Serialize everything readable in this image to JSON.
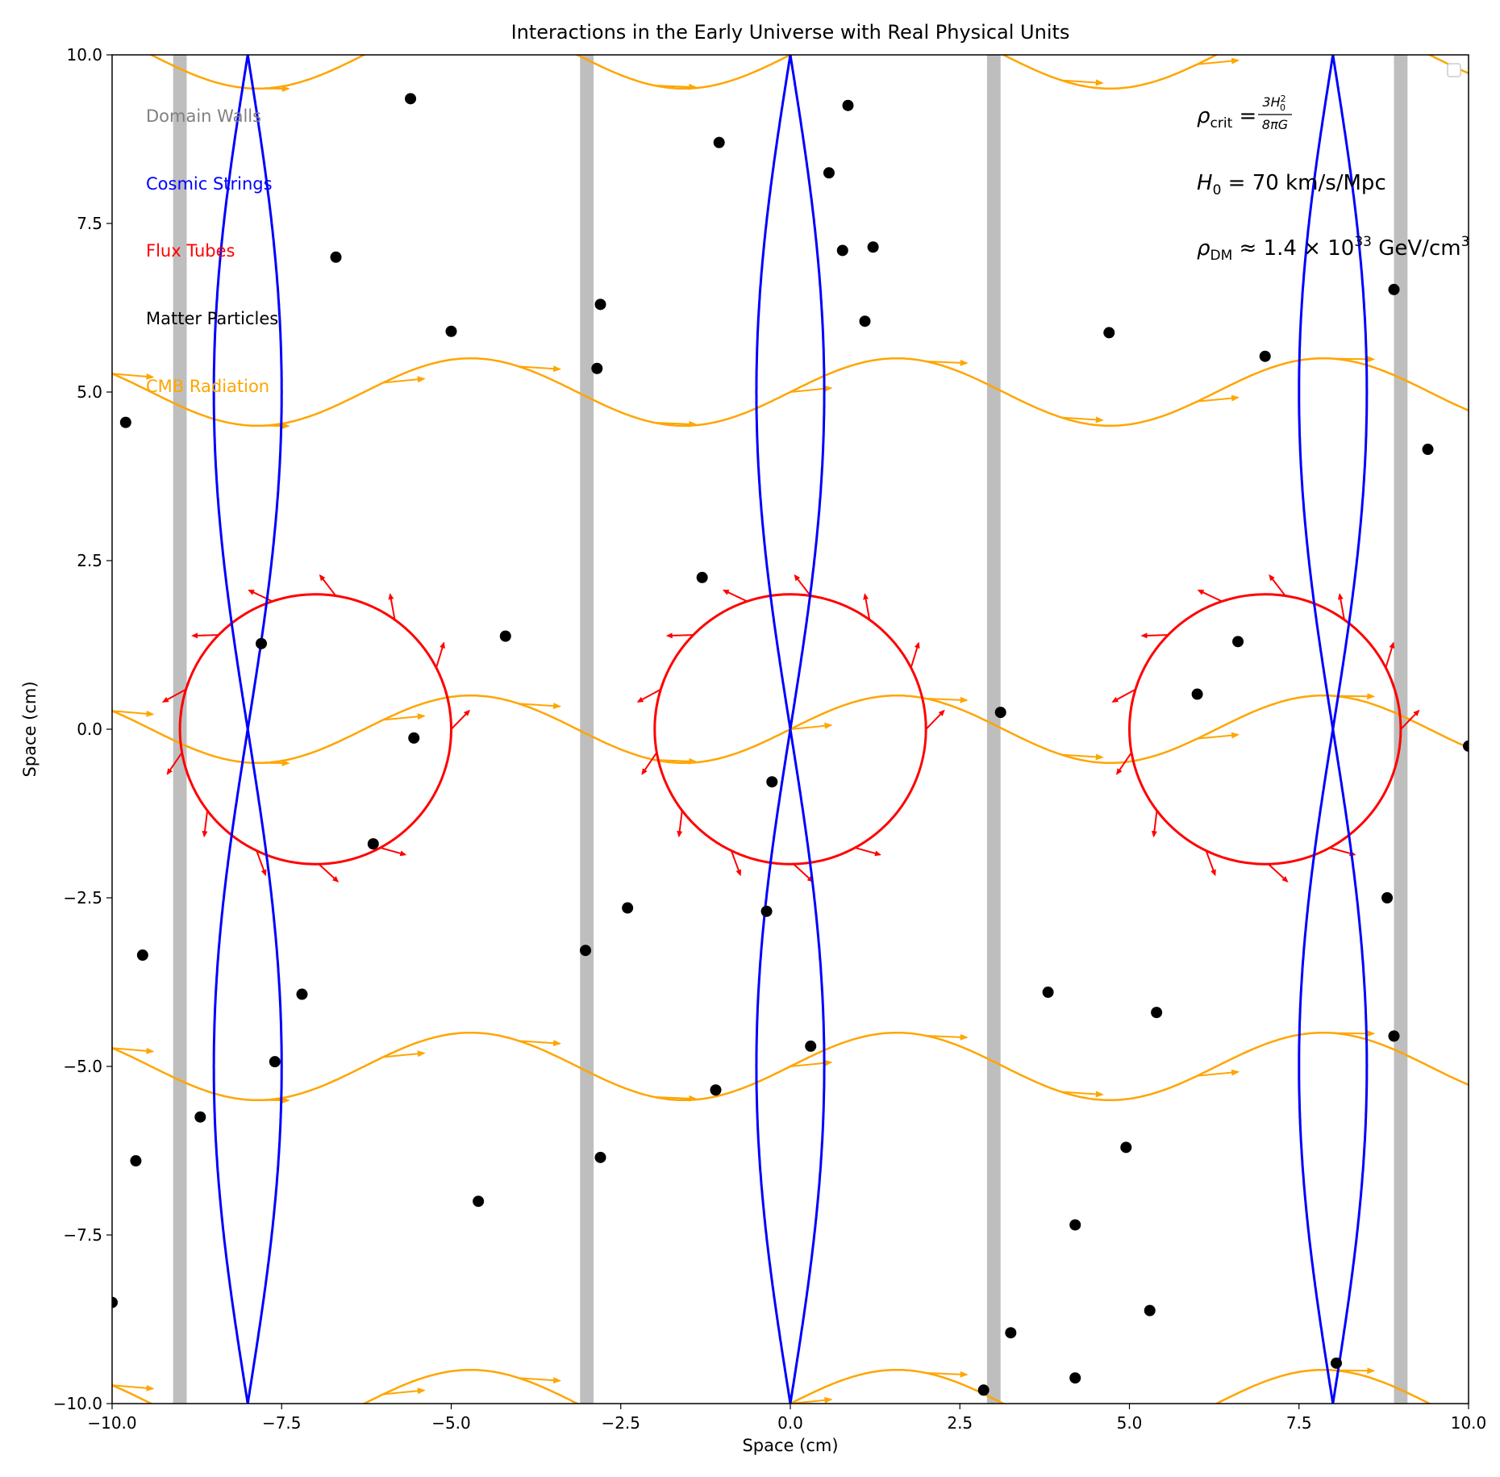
{
  "chart_data": {
    "type": "scatter",
    "title": "Interactions in the Early Universe with Real Physical Units",
    "xlabel": "Space (cm)",
    "ylabel": "Space (cm)",
    "xlim": [
      -10,
      10
    ],
    "ylim": [
      -10,
      10
    ],
    "xticks": [
      -10,
      -7.5,
      -5,
      -2.5,
      0,
      2.5,
      5,
      7.5,
      10
    ],
    "yticks": [
      -10,
      -7.5,
      -5,
      -2.5,
      0,
      2.5,
      5,
      7.5,
      10
    ],
    "xtick_labels": [
      "−10.0",
      "−7.5",
      "−5.0",
      "−2.5",
      "0.0",
      "2.5",
      "5.0",
      "7.5",
      "10.0"
    ],
    "ytick_labels": [
      "−10.0",
      "−7.5",
      "−5.0",
      "−2.5",
      "0.0",
      "2.5",
      "5.0",
      "7.5",
      "10.0"
    ],
    "grid": false,
    "legend_labels": [
      {
        "text": "Domain Walls",
        "color": "#808080"
      },
      {
        "text": "Cosmic Strings",
        "color": "#0000ff"
      },
      {
        "text": "Flux Tubes",
        "color": "#ff0000"
      },
      {
        "text": "Matter Particles",
        "color": "#000000"
      },
      {
        "text": "CMB Radiation",
        "color": "#ffa500"
      }
    ],
    "domain_walls": {
      "x": [
        -9,
        -3,
        3,
        9
      ],
      "half_width": 0.1,
      "color": "#bebebe"
    },
    "cosmic_strings": {
      "x_centers": [
        -8,
        0,
        8
      ],
      "amplitude": 0.5,
      "color": "#0000ff"
    },
    "flux_tubes": {
      "centers": [
        [
          -7,
          0
        ],
        [
          0,
          0
        ],
        [
          7,
          0
        ]
      ],
      "radius": 2,
      "color": "#ff0000"
    },
    "cmb_radiation": {
      "y_offsets": [
        -10,
        -5,
        0,
        5,
        10
      ],
      "amplitude": 0.5,
      "color": "#ffa500"
    },
    "matter_particles": {
      "color": "#000000",
      "points": [
        [
          -5.6,
          9.35
        ],
        [
          -9.8,
          4.55
        ],
        [
          -6.7,
          7.0
        ],
        [
          -5.0,
          5.9
        ],
        [
          -7.8,
          1.27
        ],
        [
          -4.2,
          1.38
        ],
        [
          -5.55,
          -0.13
        ],
        [
          -6.15,
          -1.7
        ],
        [
          -9.55,
          -3.35
        ],
        [
          -7.2,
          -3.93
        ],
        [
          -7.6,
          -4.93
        ],
        [
          -8.7,
          -5.75
        ],
        [
          -9.65,
          -6.4
        ],
        [
          -4.6,
          -7.0
        ],
        [
          -10.0,
          -8.5
        ],
        [
          -1.05,
          8.7
        ],
        [
          0.85,
          9.25
        ],
        [
          0.57,
          8.25
        ],
        [
          0.77,
          7.1
        ],
        [
          1.22,
          7.15
        ],
        [
          -2.8,
          6.3
        ],
        [
          1.1,
          6.05
        ],
        [
          -2.85,
          5.35
        ],
        [
          -1.3,
          2.25
        ],
        [
          -0.27,
          -0.78
        ],
        [
          -2.4,
          -2.65
        ],
        [
          -0.35,
          -2.7
        ],
        [
          -3.02,
          -3.28
        ],
        [
          0.3,
          -4.7
        ],
        [
          -1.1,
          -5.35
        ],
        [
          -2.8,
          -6.35
        ],
        [
          3.1,
          0.25
        ],
        [
          4.7,
          5.88
        ],
        [
          7.0,
          5.53
        ],
        [
          8.9,
          6.52
        ],
        [
          9.4,
          4.15
        ],
        [
          6.6,
          1.3
        ],
        [
          6.0,
          0.52
        ],
        [
          10.0,
          -0.25
        ],
        [
          8.8,
          -2.5
        ],
        [
          3.8,
          -3.9
        ],
        [
          5.4,
          -4.2
        ],
        [
          8.9,
          -4.55
        ],
        [
          4.95,
          -6.2
        ],
        [
          4.2,
          -7.35
        ],
        [
          5.3,
          -8.62
        ],
        [
          3.25,
          -8.95
        ],
        [
          2.85,
          -9.8
        ],
        [
          4.2,
          -9.62
        ],
        [
          8.05,
          -9.4
        ]
      ]
    },
    "annotations": [
      {
        "base": "ρ",
        "sub": "crit",
        "rest": " = ",
        "num": "3H",
        "num_sup": "2",
        "num_sub": "0",
        "den": "8πG"
      },
      {
        "base": "H",
        "sub": "0",
        "rest": " = 70 km/s/Mpc"
      },
      {
        "base": "ρ",
        "sub": "DM",
        "rest": " ≈ 1.4 × 10",
        "sup": "33",
        "rest2": " GeV/cm",
        "sup2": "3"
      }
    ]
  }
}
